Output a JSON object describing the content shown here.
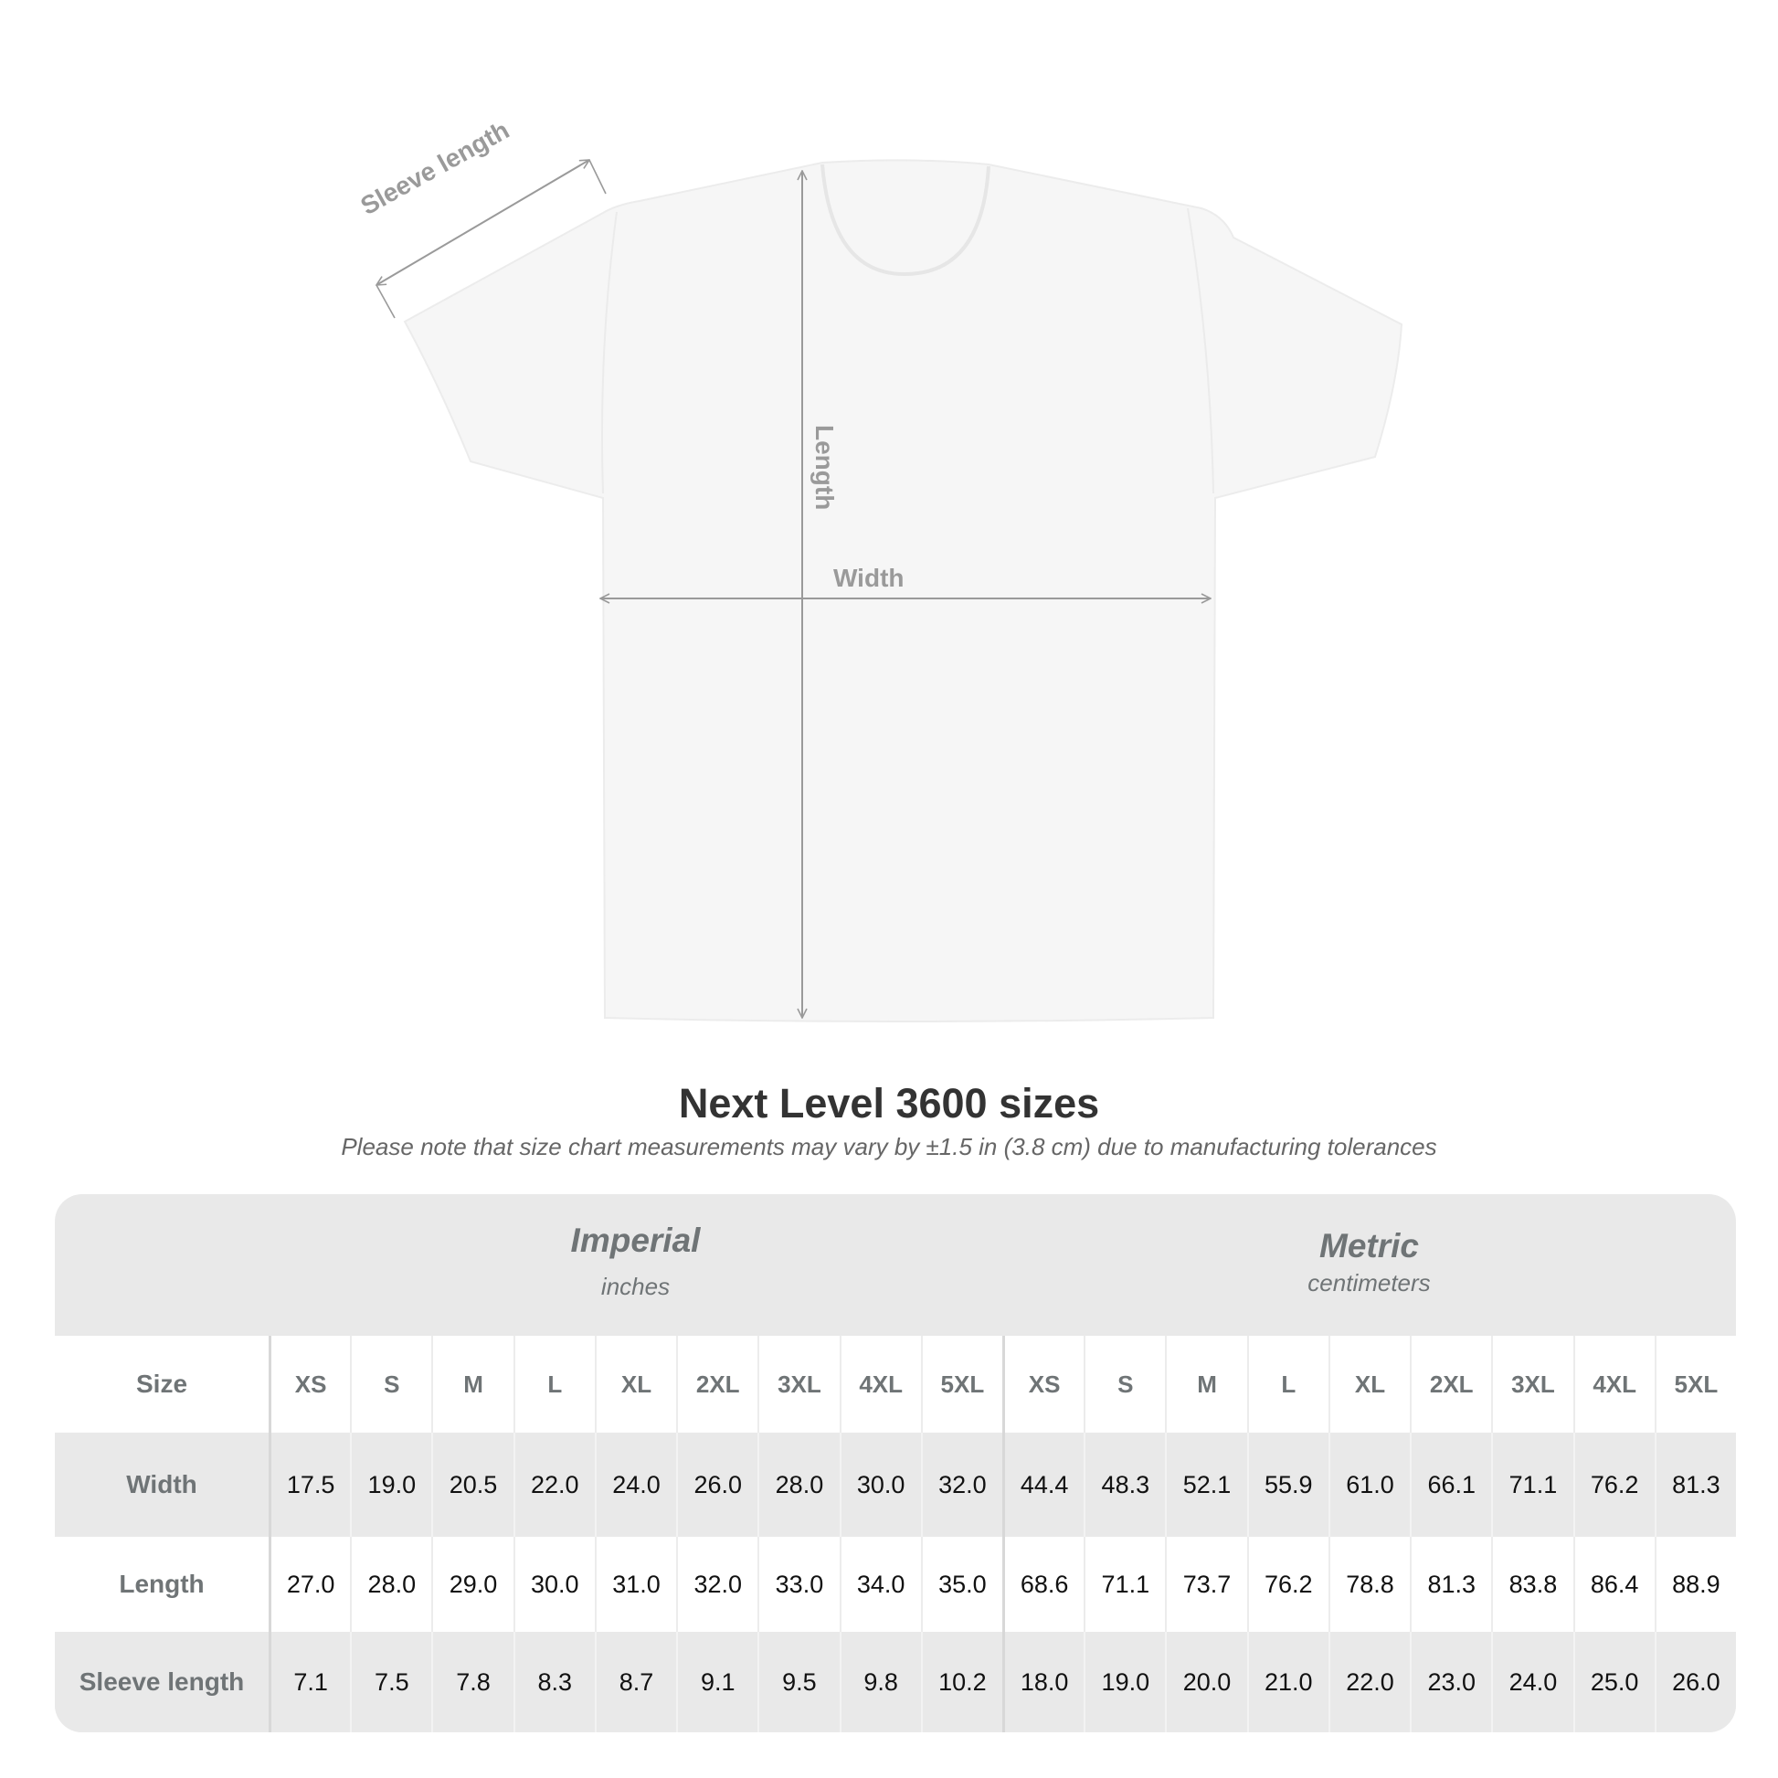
{
  "diagram": {
    "labels": {
      "sleeve": "Sleeve length",
      "length": "Length",
      "width": "Width"
    },
    "colors": {
      "shirt": "#f6f6f6",
      "arrow": "#9a9a9a"
    }
  },
  "title": "Next Level 3600 sizes",
  "subtitle": "Please note that size chart measurements may vary by ±1.5 in (3.8 cm) due to manufacturing tolerances",
  "table": {
    "imperial": {
      "label": "Imperial",
      "unit": "inches"
    },
    "metric": {
      "label": "Metric",
      "unit": "centimeters"
    },
    "rows": [
      {
        "label": "Size",
        "values": [
          "XS",
          "S",
          "M",
          "L",
          "XL",
          "2XL",
          "3XL",
          "4XL",
          "5XL",
          "XS",
          "S",
          "M",
          "L",
          "XL",
          "2XL",
          "3XL",
          "4XL",
          "5XL"
        ]
      },
      {
        "label": "Width",
        "values": [
          "17.5",
          "19.0",
          "20.5",
          "22.0",
          "24.0",
          "26.0",
          "28.0",
          "30.0",
          "32.0",
          "44.4",
          "48.3",
          "52.1",
          "55.9",
          "61.0",
          "66.1",
          "71.1",
          "76.2",
          "81.3"
        ]
      },
      {
        "label": "Length",
        "values": [
          "27.0",
          "28.0",
          "29.0",
          "30.0",
          "31.0",
          "32.0",
          "33.0",
          "34.0",
          "35.0",
          "68.6",
          "71.1",
          "73.7",
          "76.2",
          "78.8",
          "81.3",
          "83.8",
          "86.4",
          "88.9"
        ]
      },
      {
        "label": "Sleeve length",
        "values": [
          "7.1",
          "7.5",
          "7.8",
          "8.3",
          "8.7",
          "9.1",
          "9.5",
          "9.8",
          "10.2",
          "18.0",
          "19.0",
          "20.0",
          "21.0",
          "22.0",
          "23.0",
          "24.0",
          "25.0",
          "26.0"
        ]
      }
    ]
  }
}
